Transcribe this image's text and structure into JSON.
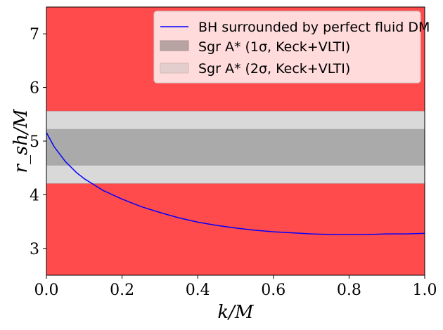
{
  "chart_data": {
    "type": "line",
    "xlabel": "k/M",
    "ylabel": "r_sh/M",
    "xlim": [
      0.0,
      1.0
    ],
    "ylim": [
      2.5,
      7.5
    ],
    "x_ticks": [
      "0.0",
      "0.2",
      "0.4",
      "0.6",
      "0.8",
      "1.0"
    ],
    "y_ticks": [
      "3",
      "4",
      "5",
      "6",
      "7"
    ],
    "series": [
      {
        "name": "BH surrounded by perfect fluid DM",
        "color": "#0000ff",
        "x": [
          0.0,
          0.02,
          0.05,
          0.08,
          0.1,
          0.15,
          0.2,
          0.25,
          0.3,
          0.35,
          0.4,
          0.45,
          0.5,
          0.55,
          0.6,
          0.65,
          0.7,
          0.75,
          0.8,
          0.85,
          0.9,
          0.95,
          1.0
        ],
        "y": [
          5.16,
          4.9,
          4.62,
          4.41,
          4.3,
          4.08,
          3.92,
          3.78,
          3.67,
          3.57,
          3.49,
          3.43,
          3.38,
          3.34,
          3.31,
          3.29,
          3.27,
          3.26,
          3.26,
          3.26,
          3.27,
          3.27,
          3.28
        ]
      }
    ],
    "bands": [
      {
        "name": "Sgr A* (2σ, Keck+VLTI)",
        "ymin": 4.21,
        "ymax": 5.56,
        "color": "#d9d9d9"
      },
      {
        "name": "Sgr A* (1σ, Keck+VLTI)",
        "ymin": 4.55,
        "ymax": 5.22,
        "color": "#aaaaaa"
      }
    ],
    "excluded_color": "#ff4b4b",
    "legend": {
      "placement": "top-right",
      "entries": [
        {
          "label": "BH surrounded by perfect fluid DM",
          "kind": "line",
          "color": "#0000ff"
        },
        {
          "label": "Sgr A* (1σ, Keck+VLTI)",
          "kind": "patch",
          "color": "#b8a3a3"
        },
        {
          "label": "Sgr A* (2σ, Keck+VLTI)",
          "kind": "patch",
          "color": "#e3cdcd"
        }
      ]
    }
  }
}
